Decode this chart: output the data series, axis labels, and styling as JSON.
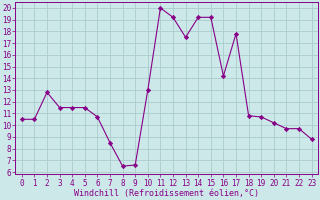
{
  "x": [
    0,
    1,
    2,
    3,
    4,
    5,
    6,
    7,
    8,
    9,
    10,
    11,
    12,
    13,
    14,
    15,
    16,
    17,
    18,
    19,
    20,
    21,
    22,
    23
  ],
  "y": [
    10.5,
    10.5,
    12.8,
    11.5,
    11.5,
    11.5,
    10.7,
    8.5,
    6.5,
    6.6,
    13.0,
    20.0,
    19.2,
    17.5,
    19.2,
    19.2,
    14.2,
    17.8,
    10.8,
    10.7,
    10.2,
    9.7,
    9.7,
    8.8
  ],
  "line_color": "#880088",
  "marker": "D",
  "marker_size": 2.2,
  "bg_color": "#cce8e8",
  "grid_color": "#aacccc",
  "xlabel": "Windchill (Refroidissement éolien,°C)",
  "xlabel_fontsize": 6.0,
  "ylabel_ticks": [
    6,
    7,
    8,
    9,
    10,
    11,
    12,
    13,
    14,
    15,
    16,
    17,
    18,
    19,
    20
  ],
  "xlim": [
    -0.5,
    23.5
  ],
  "ylim": [
    5.8,
    20.5
  ],
  "tick_fontsize": 5.5,
  "line_width": 0.8
}
